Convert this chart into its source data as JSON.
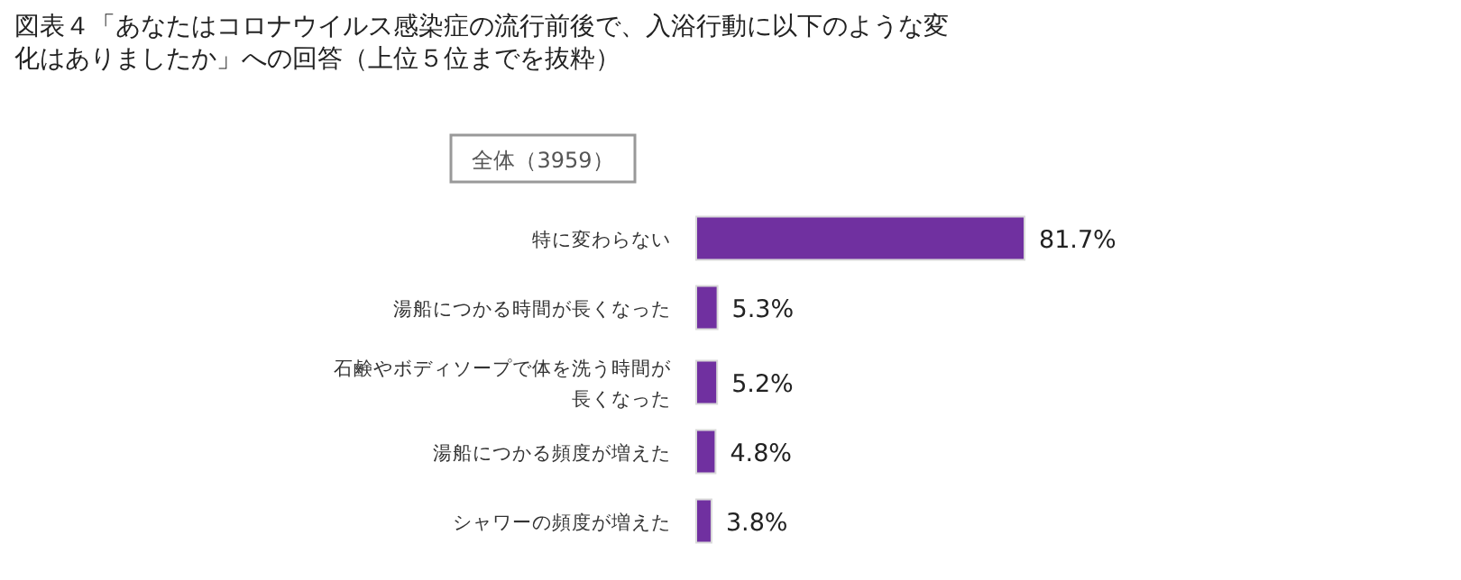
{
  "chart_data": {
    "type": "bar",
    "orientation": "horizontal",
    "title": "図表４「あなたはコロナウイルス感染症の流行前後で、入浴行動に以下のような変化はありましたか」への回答（上位５位までを抜粋）",
    "subtitle": "全体（3959）",
    "categories": [
      "特に変わらない",
      "湯船につかる時間が長くなった",
      "石鹸やボディソープで体を洗う時間が長くなった",
      "湯船につかる頻度が増えた",
      "シャワーの頻度が増えた"
    ],
    "values": [
      81.7,
      5.3,
      5.2,
      4.8,
      3.8
    ],
    "color": "#7030a0",
    "value_labels": [
      "81.7%",
      "5.3%",
      "5.2%",
      "4.8%",
      "3.8%"
    ]
  }
}
